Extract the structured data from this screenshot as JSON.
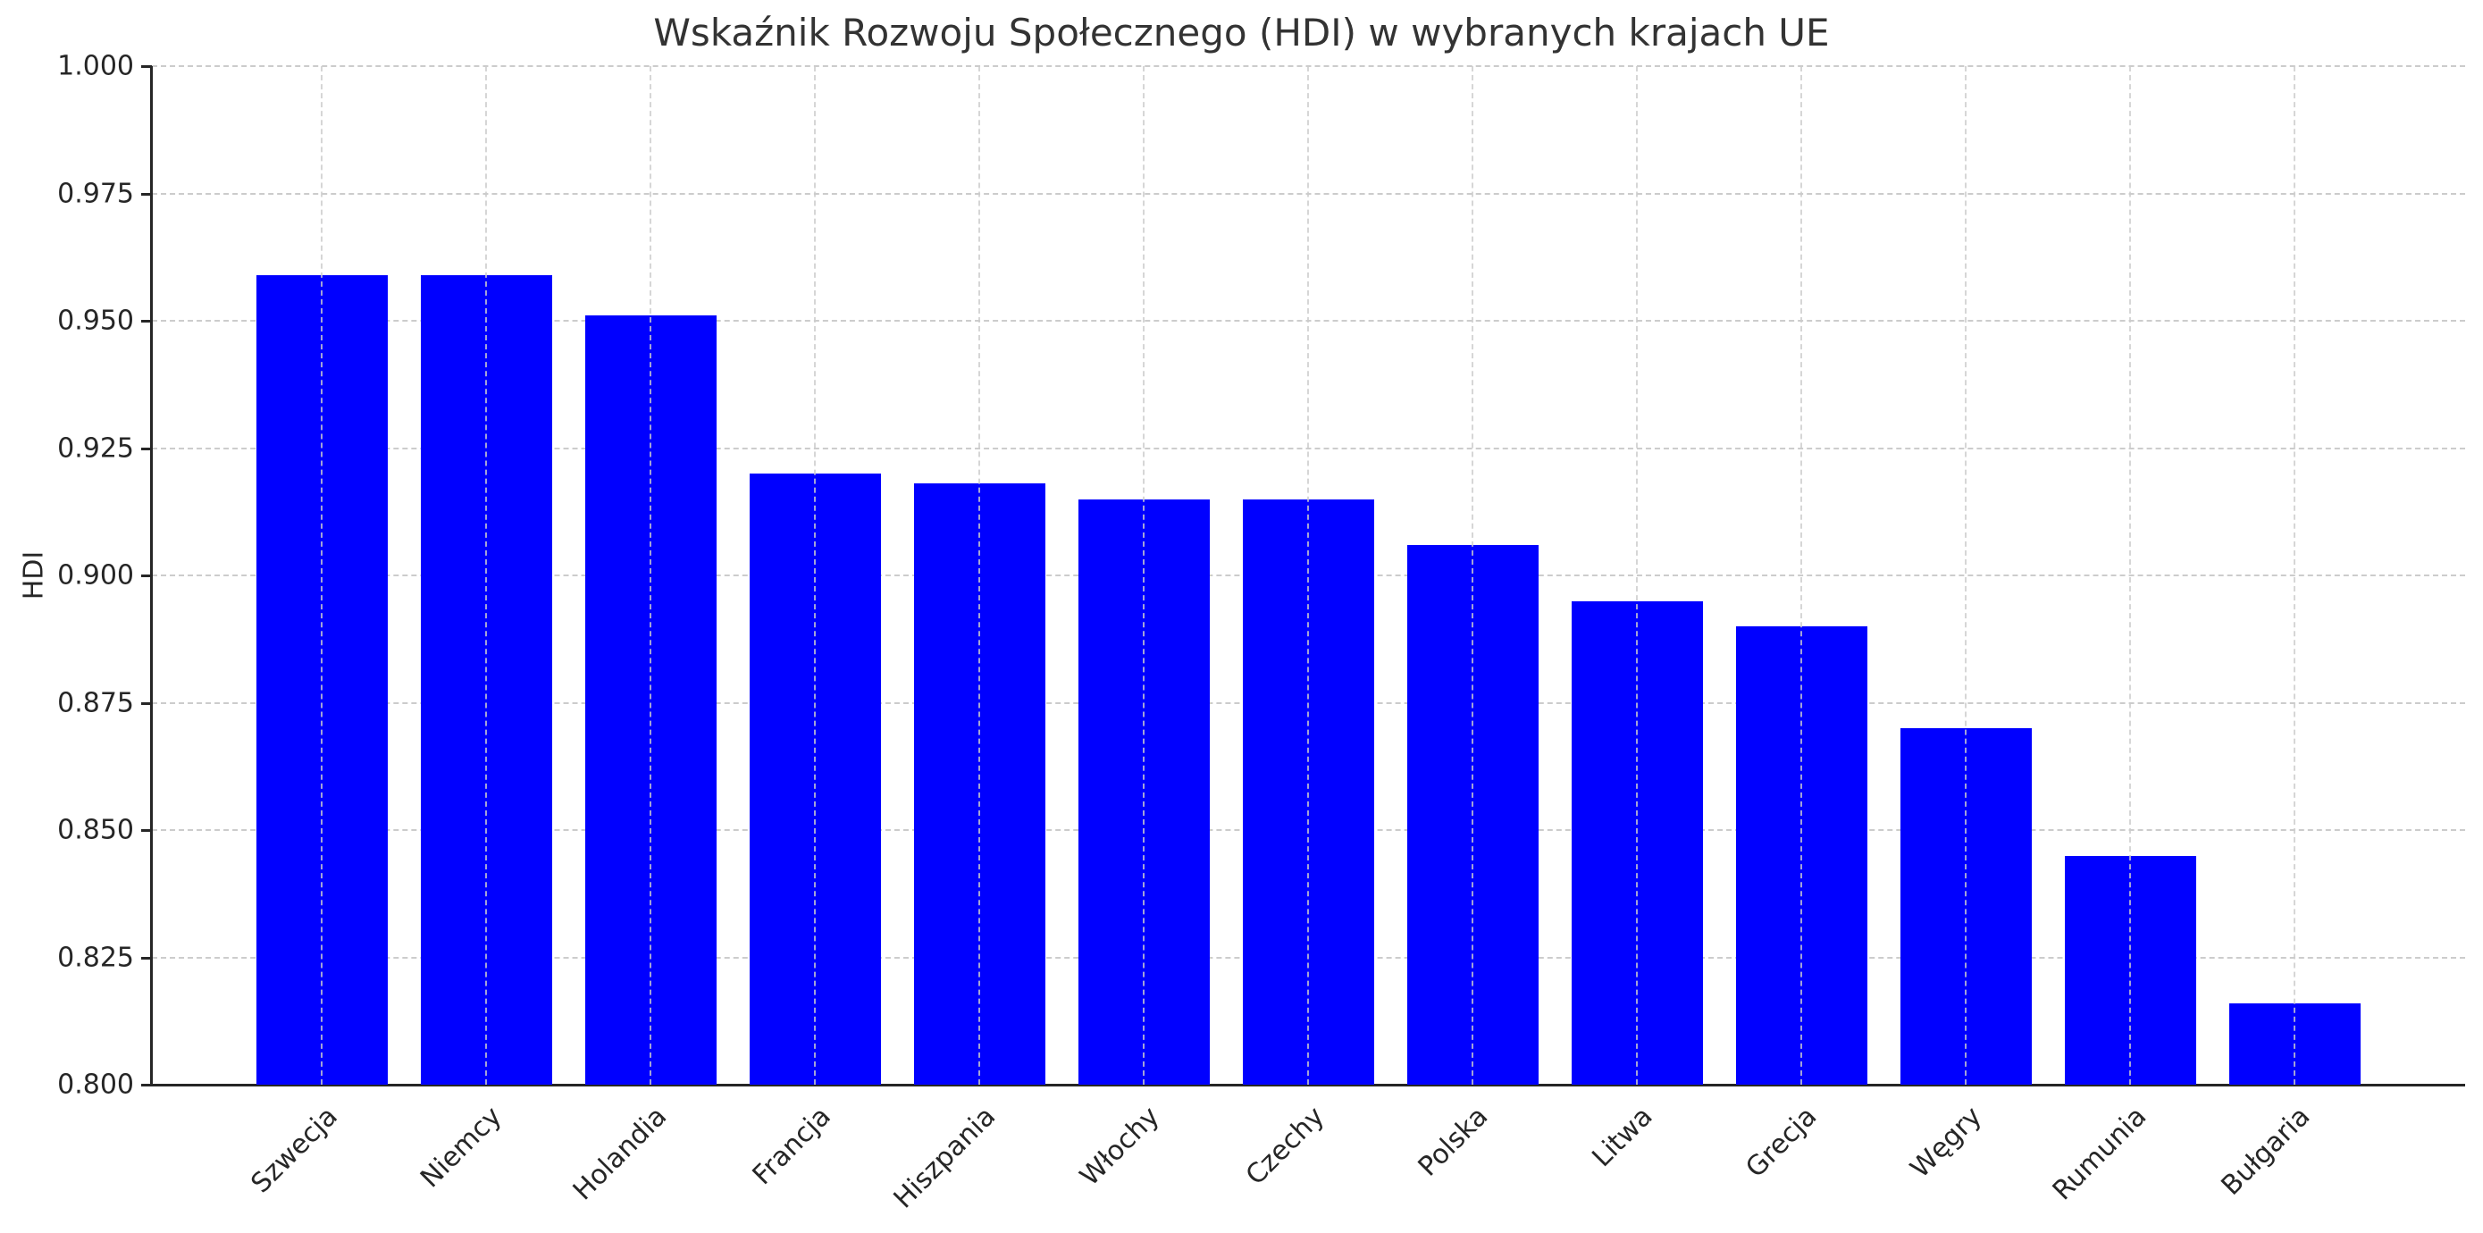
{
  "chart_data": {
    "type": "bar",
    "title": "Wskaźnik Rozwoju Społecznego (HDI) w wybranych krajach UE",
    "xlabel": "",
    "ylabel": "HDI",
    "ylim": [
      0.8,
      1.0
    ],
    "yticks": [
      "0.800",
      "0.825",
      "0.850",
      "0.875",
      "0.900",
      "0.925",
      "0.950",
      "0.975",
      "1.000"
    ],
    "grid": true,
    "legend": null,
    "bar_color": "#0000ff",
    "categories": [
      "Szwecja",
      "Niemcy",
      "Holandia",
      "Francja",
      "Hiszpania",
      "Włochy",
      "Czechy",
      "Polska",
      "Litwa",
      "Grecja",
      "Węgry",
      "Rumunia",
      "Bułgaria"
    ],
    "values": [
      0.959,
      0.959,
      0.951,
      0.92,
      0.918,
      0.915,
      0.915,
      0.906,
      0.895,
      0.89,
      0.87,
      0.845,
      0.816
    ]
  }
}
